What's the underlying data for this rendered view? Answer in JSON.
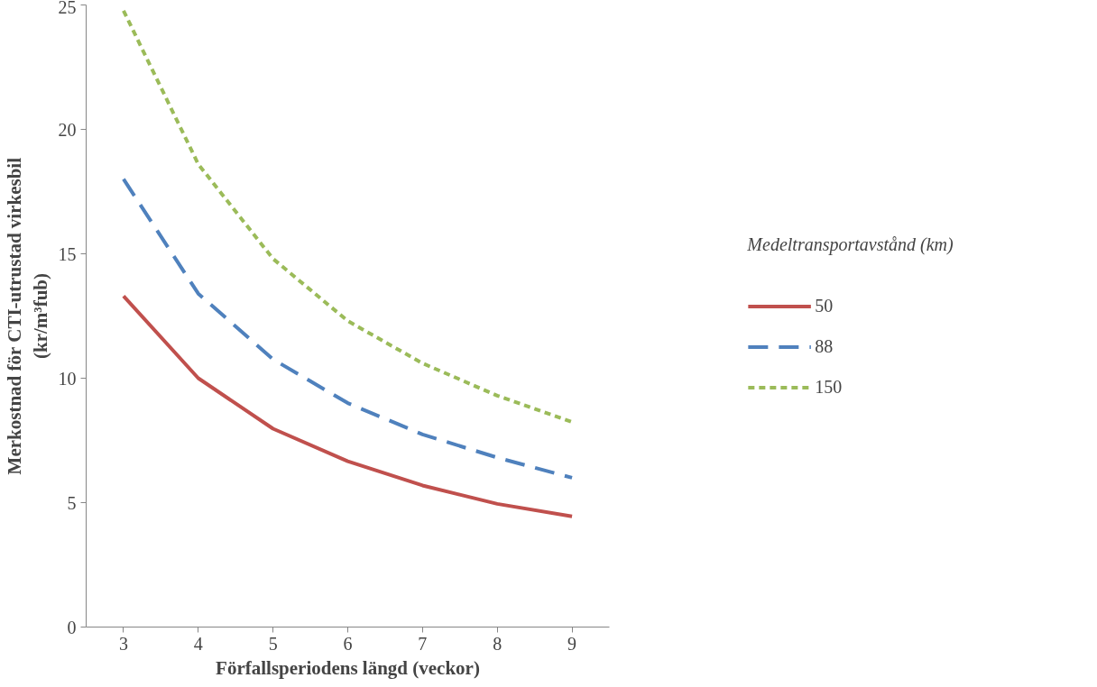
{
  "chart_data": {
    "type": "line",
    "xlabel": "Förfallsperiodens längd (veckor)",
    "ylabel": "Merkostnad för CTI-utrustad virkesbil\n(kr/m³fub)",
    "legend_title": "Medeltransportavstånd (km)",
    "legend": "right",
    "grid": false,
    "marker": "none",
    "categories": [
      "3",
      "4",
      "5",
      "6",
      "7",
      "8",
      "9"
    ],
    "ylim": [
      0,
      25
    ],
    "yticks": [
      0,
      5,
      10,
      15,
      20,
      25
    ],
    "series": [
      {
        "name": "50",
        "color": "#c0504d",
        "line_style": "solid",
        "values": [
          13.3,
          10.0,
          7.97,
          6.66,
          5.69,
          4.95,
          4.45
        ]
      },
      {
        "name": "88",
        "color": "#4f81bd",
        "line_style": "dashed",
        "values": [
          18.0,
          13.4,
          10.76,
          9.0,
          7.74,
          6.81,
          6.0
        ]
      },
      {
        "name": "150",
        "color": "#9bbb59",
        "line_style": "dotted",
        "values": [
          24.77,
          18.6,
          14.8,
          12.3,
          10.6,
          9.3,
          8.24
        ]
      }
    ]
  }
}
